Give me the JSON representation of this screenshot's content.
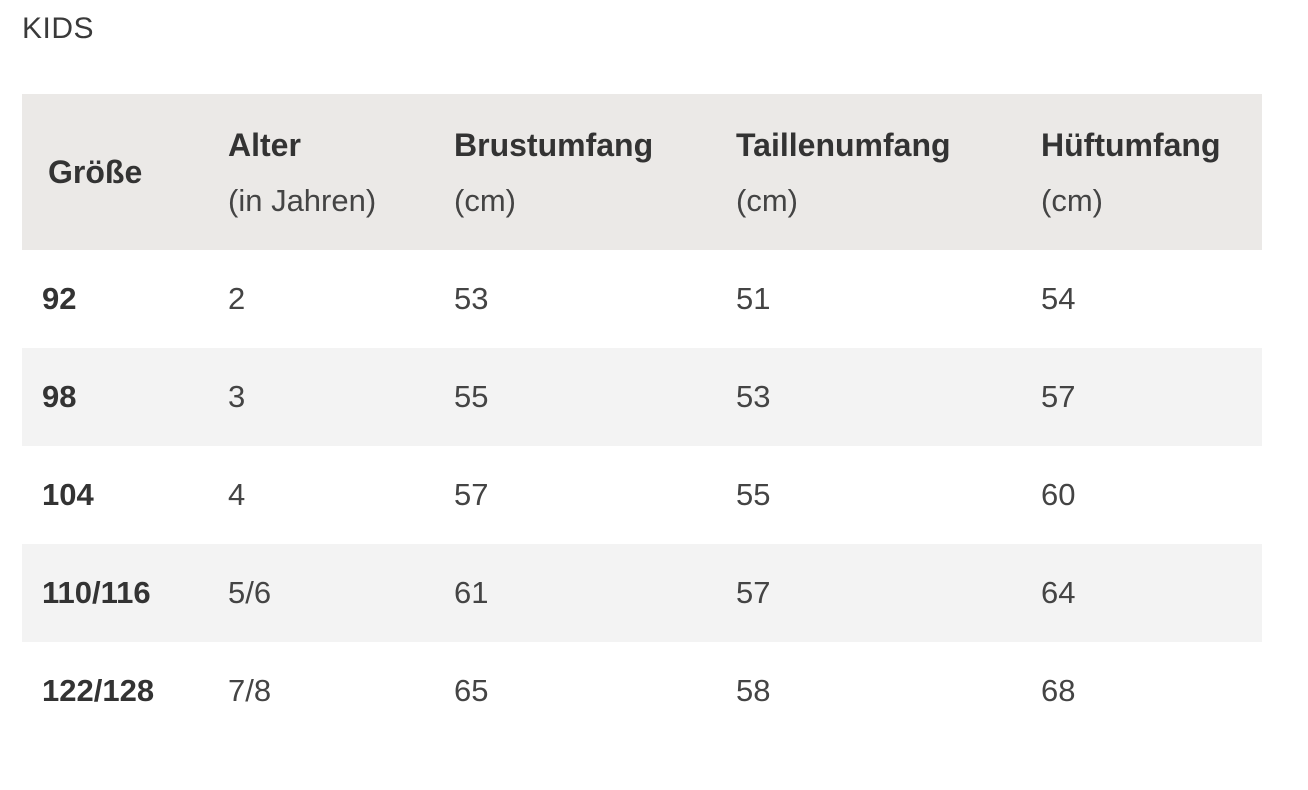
{
  "section_title": "KIDS",
  "table": {
    "headers": [
      {
        "label": "Größe",
        "sub": ""
      },
      {
        "label": "Alter",
        "sub": "(in Jahren)"
      },
      {
        "label": "Brustumfang",
        "sub": "(cm)"
      },
      {
        "label": "Taillenumfang",
        "sub": "(cm)"
      },
      {
        "label": "Hüftumfang",
        "sub": "(cm)"
      }
    ],
    "rows": [
      [
        "92",
        "2",
        "53",
        "51",
        "54"
      ],
      [
        "98",
        "3",
        "55",
        "53",
        "57"
      ],
      [
        "104",
        "4",
        "57",
        "55",
        "60"
      ],
      [
        "110/116",
        "5/6",
        "61",
        "57",
        "64"
      ],
      [
        "122/128",
        "7/8",
        "65",
        "58",
        "68"
      ]
    ]
  },
  "colors": {
    "header_bg": "#ebe9e7",
    "row_shade": "#f3f3f3",
    "text": "#333333"
  }
}
